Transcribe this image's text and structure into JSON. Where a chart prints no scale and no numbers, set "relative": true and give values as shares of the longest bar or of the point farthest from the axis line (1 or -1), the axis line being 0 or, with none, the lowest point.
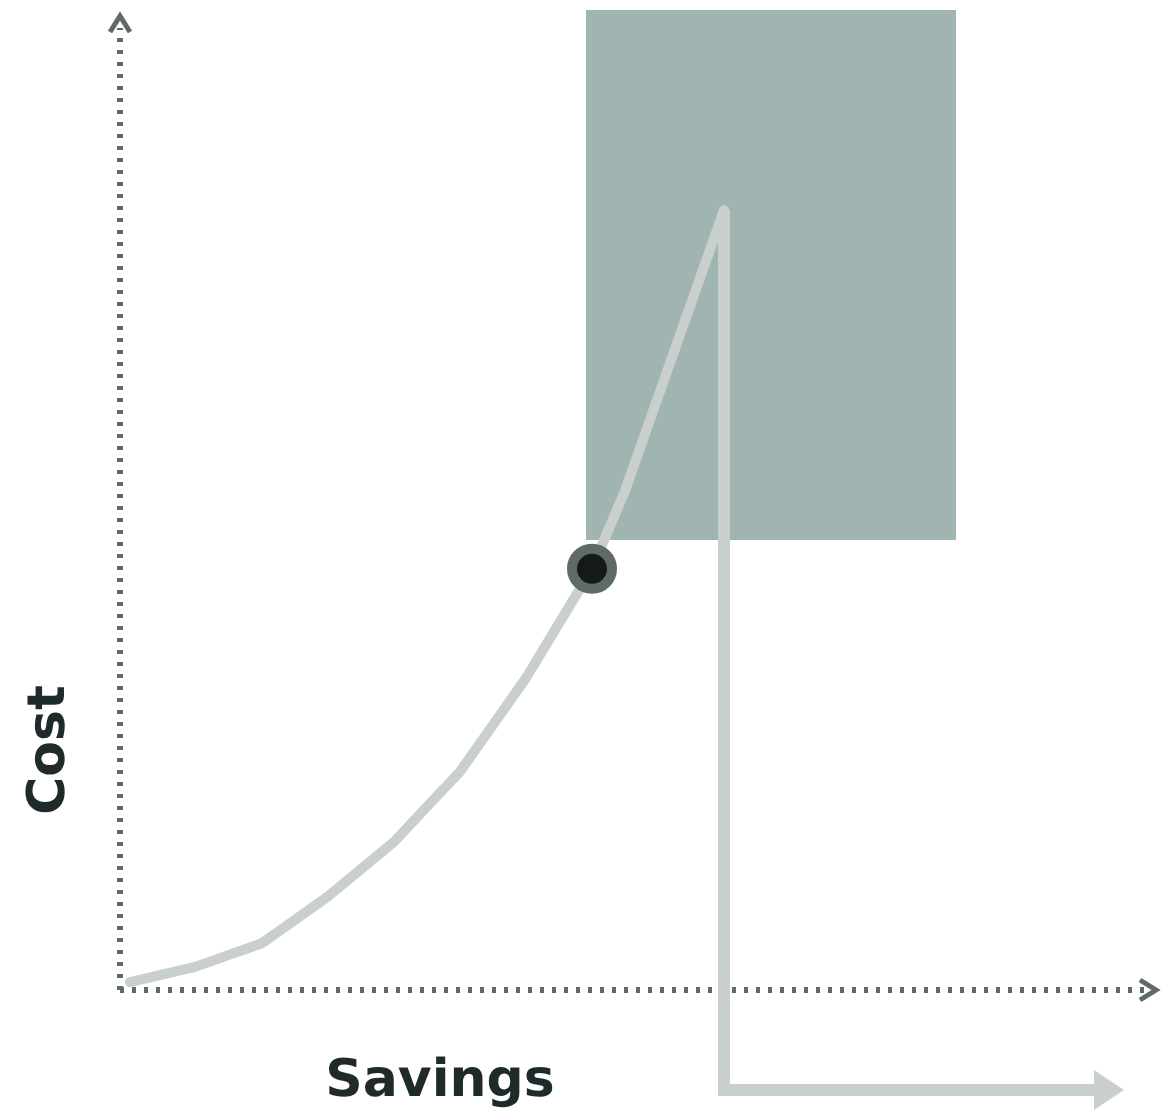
{
  "chart_data": {
    "type": "line",
    "relative": true,
    "xlabel": "Savings",
    "ylabel": "Cost",
    "categories": [
      null,
      null,
      null,
      null,
      null,
      null,
      null,
      null,
      null,
      null,
      null,
      null,
      null,
      null,
      null,
      null,
      null,
      null,
      null,
      null,
      null,
      null,
      null,
      null,
      null,
      null,
      null,
      null,
      null,
      null,
      null
    ],
    "series": [
      {
        "color": "#c8cfcc",
        "values": [
          0.01,
          0.02,
          0.03,
          0.045,
          0.06,
          0.09,
          0.12,
          0.155,
          0.19,
          0.235,
          0.28,
          0.34,
          0.4,
          0.47,
          0.54,
          0.64,
          0.76,
          0.88,
          1,
          null,
          null,
          null,
          null,
          null,
          null,
          null,
          null,
          null,
          null,
          null,
          null
        ]
      }
    ]
  }
}
